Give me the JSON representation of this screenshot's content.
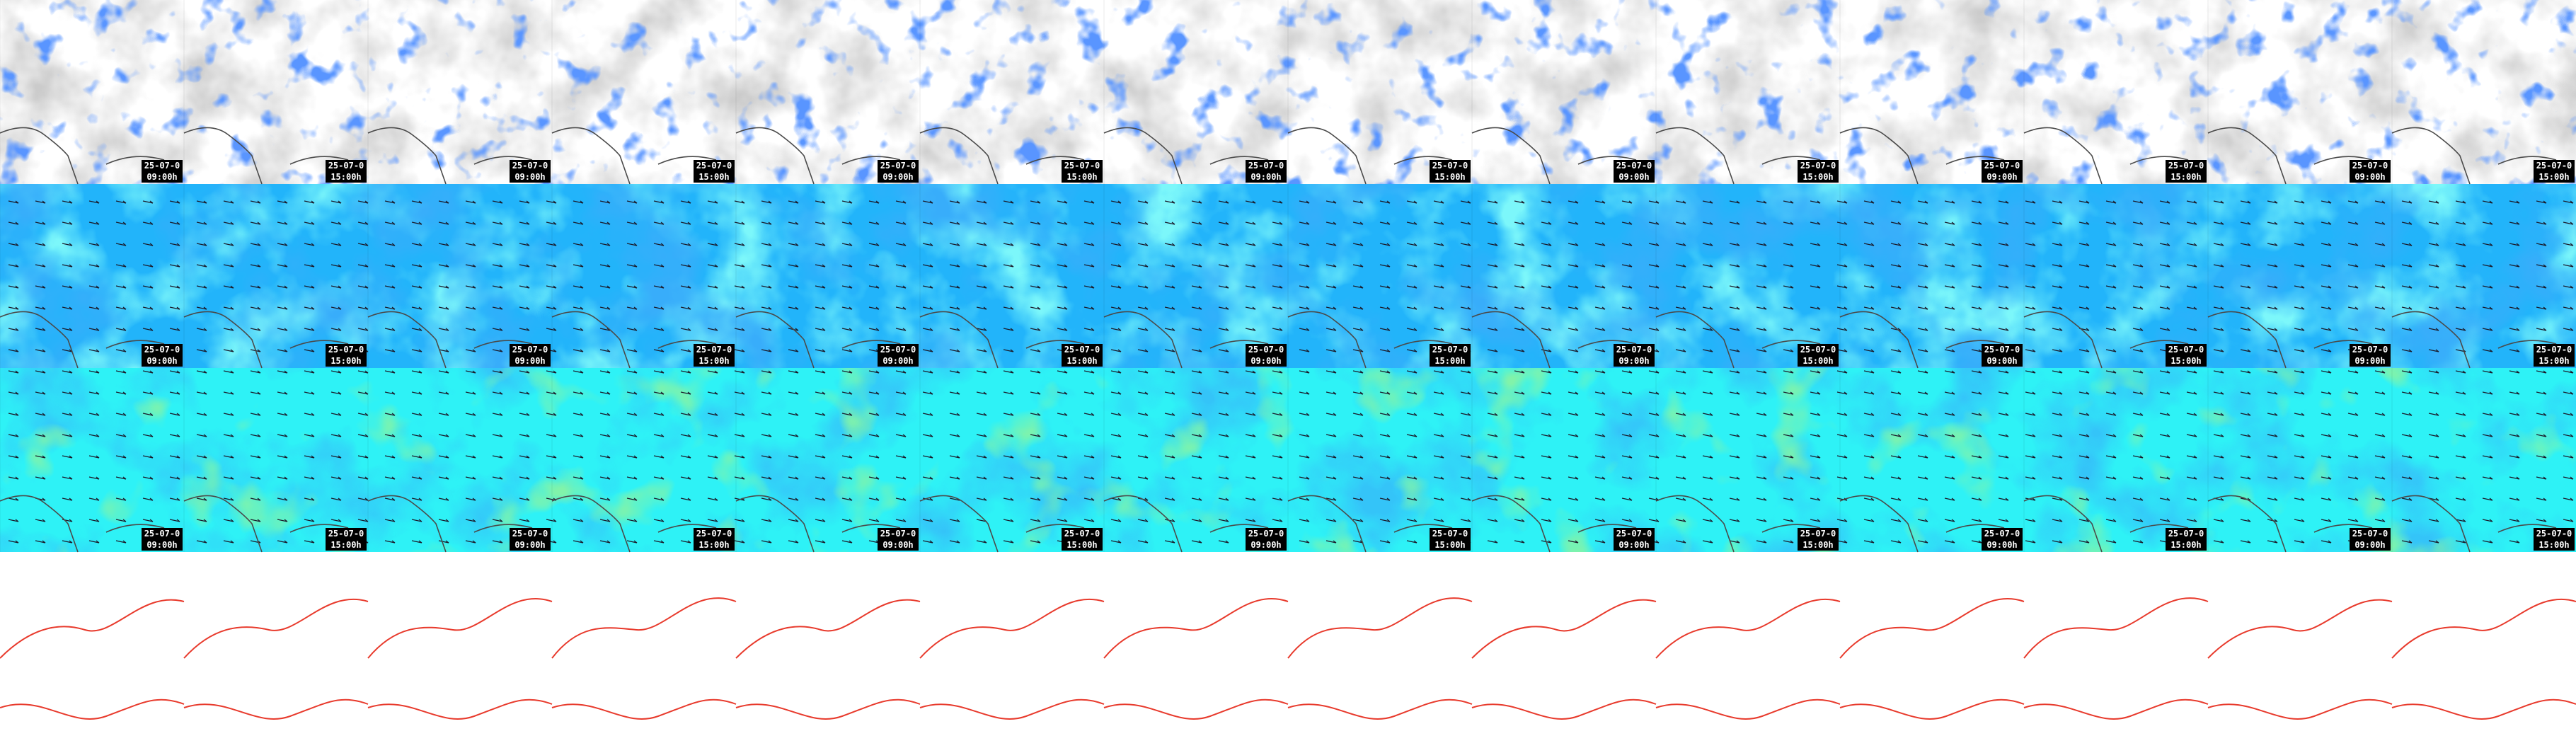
{
  "layers": [
    {
      "name": "cloud-precipitation",
      "palette": [
        "#ffffff",
        "#e2e2e2",
        "#c2c2c2",
        "#a4a4a4"
      ],
      "overlay": "#1a4cff"
    },
    {
      "name": "wind-field",
      "palette": [
        "#0a6cf5",
        "#1a8ef8",
        "#22b4fa",
        "#2fe0fb",
        "#3cf2f5"
      ]
    },
    {
      "name": "wind-field-lower",
      "palette": [
        "#1480f5",
        "#28b8fa",
        "#2ef2f6",
        "#38f5e6",
        "#3cf05a",
        "#32dc32",
        "#1ec81e"
      ]
    },
    {
      "name": "contour-map",
      "line_color": "#e83a2c"
    }
  ],
  "columns": [
    {
      "date": "25-07-0",
      "time": "09:00h"
    },
    {
      "date": "25-07-0",
      "time": "15:00h"
    },
    {
      "date": "25-07-0",
      "time": "09:00h"
    },
    {
      "date": "25-07-0",
      "time": "15:00h"
    },
    {
      "date": "25-07-0",
      "time": "09:00h"
    },
    {
      "date": "25-07-0",
      "time": "15:00h"
    },
    {
      "date": "25-07-0",
      "time": "09:00h"
    },
    {
      "date": "25-07-0",
      "time": "15:00h"
    },
    {
      "date": "25-07-0",
      "time": "09:00h"
    },
    {
      "date": "25-07-0",
      "time": "15:00h"
    },
    {
      "date": "25-07-0",
      "time": "09:00h"
    },
    {
      "date": "25-07-0",
      "time": "15:00h"
    },
    {
      "date": "25-07-0",
      "time": "09:00h"
    },
    {
      "date": "25-07-0",
      "time": "15:00h"
    }
  ]
}
